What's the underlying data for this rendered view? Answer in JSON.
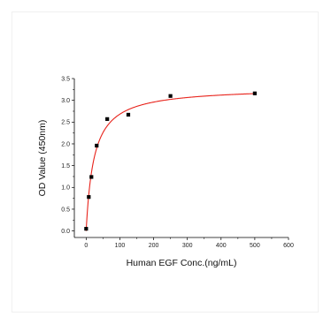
{
  "chart_data": {
    "type": "scatter",
    "xlabel": "Human EGF Conc.(ng/mL)",
    "ylabel": "OD Value (450nm)",
    "xlim": [
      -35,
      600
    ],
    "ylim": [
      -0.15,
      3.5
    ],
    "xticks": [
      0,
      100,
      200,
      300,
      400,
      500,
      600
    ],
    "yticks": [
      0.0,
      0.5,
      1.0,
      1.5,
      2.0,
      2.5,
      3.0,
      3.5
    ],
    "ytick_labels": [
      "0.0",
      "0.5",
      "1.0",
      "1.5",
      "2.0",
      "2.5",
      "3.0",
      "3.5"
    ],
    "series": [
      {
        "marker": "square",
        "color": "#000000",
        "points": [
          {
            "x": 0,
            "y": 0.05
          },
          {
            "x": 7.8,
            "y": 0.78
          },
          {
            "x": 15.6,
            "y": 1.24
          },
          {
            "x": 31.25,
            "y": 1.96
          },
          {
            "x": 62.5,
            "y": 2.57
          },
          {
            "x": 125,
            "y": 2.67
          },
          {
            "x": 250,
            "y": 3.1
          },
          {
            "x": 500,
            "y": 3.16
          }
        ]
      }
    ],
    "fit": {
      "type": "curve",
      "color": "#e8231b",
      "model": "y = 3.3 * x / (23 + x)"
    },
    "grid": false,
    "legend": "none"
  }
}
